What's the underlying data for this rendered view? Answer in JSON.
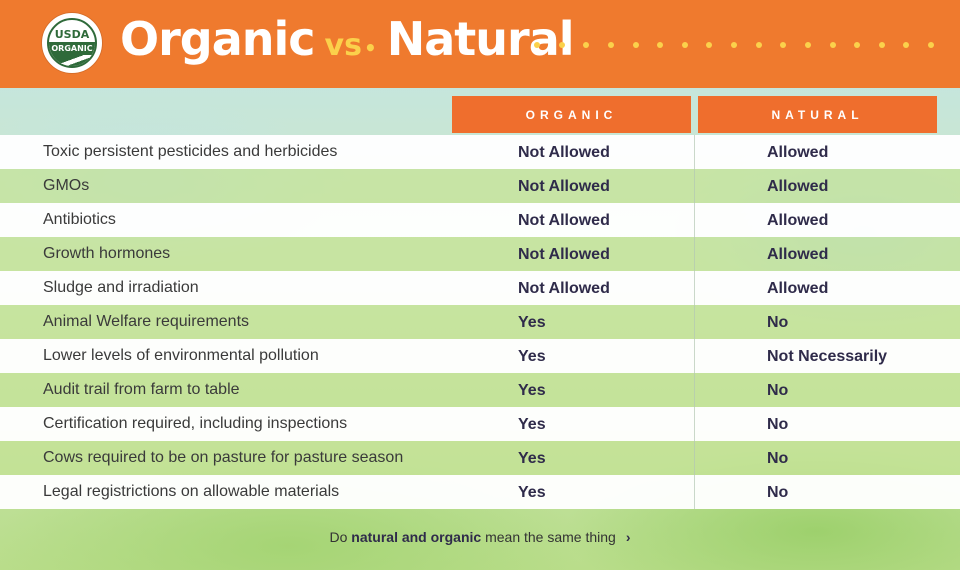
{
  "header": {
    "badge_top": "USDA",
    "badge_band": "ORGANIC",
    "title_left": "Organic",
    "title_vs": "vs",
    "title_right": "Natural"
  },
  "columns": {
    "organic": "ORGANIC",
    "natural": "NATURAL"
  },
  "rows": [
    {
      "label": "Toxic persistent pesticides and herbicides",
      "organic": "Not Allowed",
      "natural": "Allowed"
    },
    {
      "label": "GMOs",
      "organic": "Not Allowed",
      "natural": "Allowed"
    },
    {
      "label": "Antibiotics",
      "organic": "Not Allowed",
      "natural": "Allowed"
    },
    {
      "label": "Growth hormones",
      "organic": "Not Allowed",
      "natural": "Allowed"
    },
    {
      "label": "Sludge and irradiation",
      "organic": "Not Allowed",
      "natural": "Allowed"
    },
    {
      "label": "Animal Welfare requirements",
      "organic": "Yes",
      "natural": "No"
    },
    {
      "label": "Lower levels of environmental pollution",
      "organic": "Yes",
      "natural": "Not Necessarily"
    },
    {
      "label": "Audit trail from farm to table",
      "organic": "Yes",
      "natural": "No"
    },
    {
      "label": "Certification required, including inspections",
      "organic": "Yes",
      "natural": "No"
    },
    {
      "label": "Cows required to be on pasture for pasture season",
      "organic": "Yes",
      "natural": "No"
    },
    {
      "label": "Legal registrictions on allowable materials",
      "organic": "Yes",
      "natural": "No"
    }
  ],
  "footer": {
    "prefix": "Do ",
    "bold": "natural and organic",
    "suffix": " mean the same thing",
    "icon": "chevron-right-icon"
  },
  "colors": {
    "header_orange": "#ef7a2e",
    "column_orange": "#ef6e2d",
    "title_accent": "#fbd14b",
    "usda_green": "#2f6a3a",
    "value_text": "#2f2b4a"
  }
}
